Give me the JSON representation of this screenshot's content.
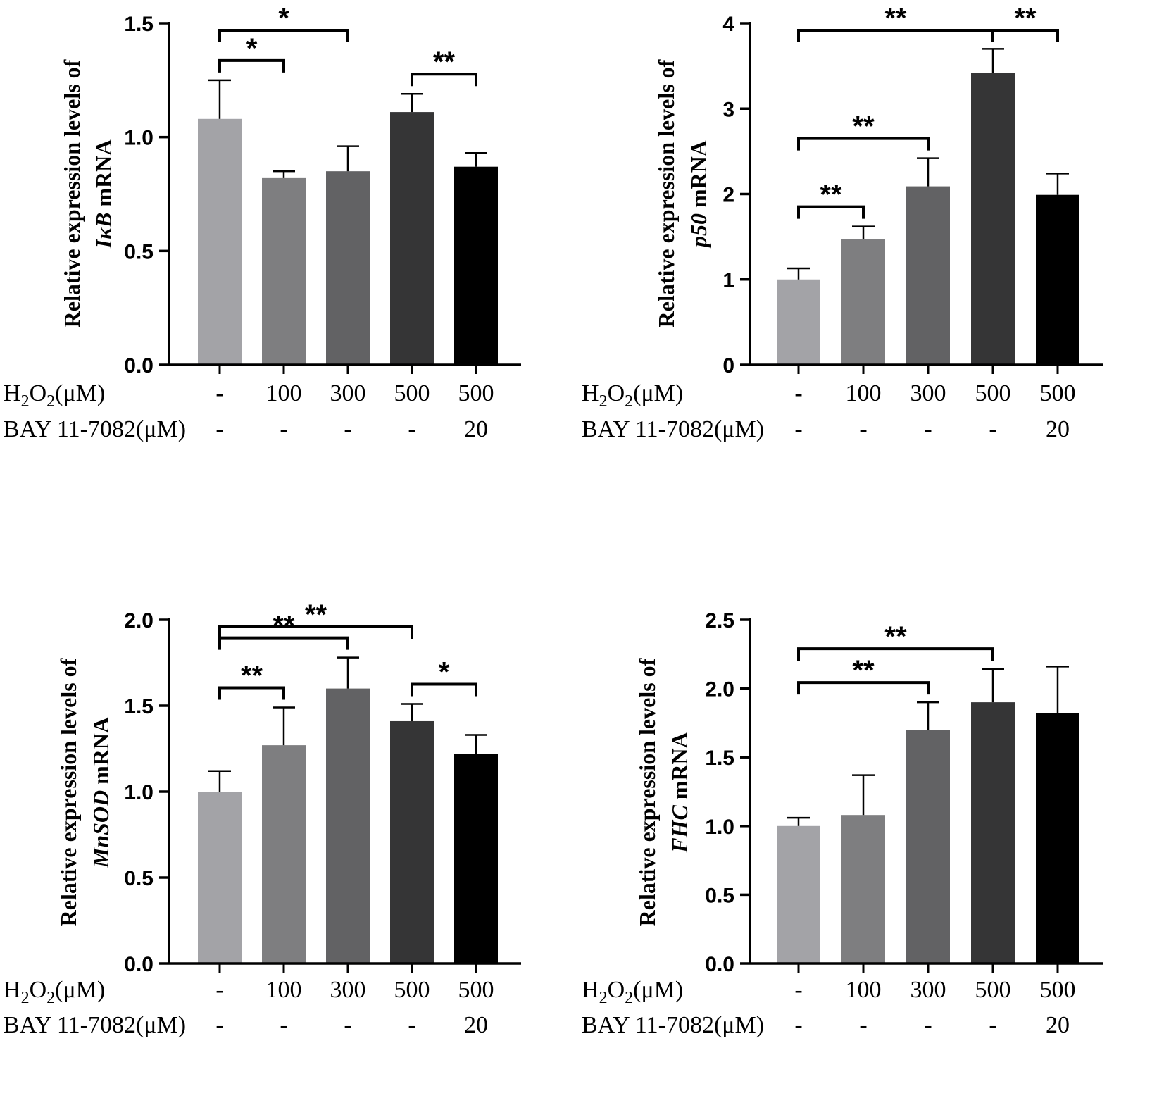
{
  "chart_data": [
    {
      "type": "bar",
      "panel": "top-left",
      "gene": "IκB",
      "ylabel_line1": "Relative expression levels of",
      "ylabel_unit": "mRNA",
      "categories": [
        "-",
        "100",
        "300",
        "500",
        "500"
      ],
      "values": [
        1.08,
        0.82,
        0.85,
        1.11,
        0.87
      ],
      "errors": [
        0.17,
        0.03,
        0.11,
        0.08,
        0.06
      ],
      "ylim": [
        0,
        1.5
      ],
      "yticks": [
        "0.0",
        "0.5",
        "1.0",
        "1.5"
      ],
      "ytick_values": [
        0,
        0.5,
        1.0,
        1.5
      ],
      "significance": [
        {
          "from": 0,
          "to": 1,
          "label": "*"
        },
        {
          "from": 0,
          "to": 2,
          "label": "*"
        },
        {
          "from": 3,
          "to": 4,
          "label": "**"
        }
      ]
    },
    {
      "type": "bar",
      "panel": "top-right",
      "gene": "p50",
      "ylabel_line1": "Relative expression levels of",
      "ylabel_unit": "mRNA",
      "categories": [
        "-",
        "100",
        "300",
        "500",
        "500"
      ],
      "values": [
        1.0,
        1.47,
        2.09,
        3.42,
        1.99
      ],
      "errors": [
        0.13,
        0.15,
        0.33,
        0.28,
        0.25
      ],
      "ylim": [
        0,
        4
      ],
      "yticks": [
        "0",
        "1",
        "2",
        "3",
        "4"
      ],
      "ytick_values": [
        0,
        1,
        2,
        3,
        4
      ],
      "significance": [
        {
          "from": 0,
          "to": 1,
          "label": "**"
        },
        {
          "from": 0,
          "to": 2,
          "label": "**"
        },
        {
          "from": 0,
          "to": 3,
          "label": "**"
        },
        {
          "from": 3,
          "to": 4,
          "label": "**"
        }
      ]
    },
    {
      "type": "bar",
      "panel": "bottom-left",
      "gene": "MnSOD",
      "ylabel_line1": "Relative expression levels of",
      "ylabel_unit": "mRNA",
      "categories": [
        "-",
        "100",
        "300",
        "500",
        "500"
      ],
      "values": [
        1.0,
        1.27,
        1.6,
        1.41,
        1.22
      ],
      "errors": [
        0.12,
        0.22,
        0.18,
        0.1,
        0.11
      ],
      "ylim": [
        0,
        2.0
      ],
      "yticks": [
        "0.0",
        "0.5",
        "1.0",
        "1.5",
        "2.0"
      ],
      "ytick_values": [
        0,
        0.5,
        1.0,
        1.5,
        2.0
      ],
      "significance": [
        {
          "from": 0,
          "to": 1,
          "label": "**"
        },
        {
          "from": 0,
          "to": 2,
          "label": "**"
        },
        {
          "from": 0,
          "to": 3,
          "label": "**"
        },
        {
          "from": 3,
          "to": 4,
          "label": "*"
        }
      ]
    },
    {
      "type": "bar",
      "panel": "bottom-right",
      "gene": "FHC",
      "ylabel_line1": "Relative expression levels of",
      "ylabel_unit": "mRNA",
      "categories": [
        "-",
        "100",
        "300",
        "500",
        "500"
      ],
      "values": [
        1.0,
        1.08,
        1.7,
        1.9,
        1.82
      ],
      "errors": [
        0.06,
        0.29,
        0.2,
        0.24,
        0.34
      ],
      "ylim": [
        0,
        2.5
      ],
      "yticks": [
        "0.0",
        "0.5",
        "1.0",
        "1.5",
        "2.0",
        "2.5"
      ],
      "ytick_values": [
        0,
        0.5,
        1.0,
        1.5,
        2.0,
        2.5
      ],
      "significance": [
        {
          "from": 0,
          "to": 2,
          "label": "**"
        },
        {
          "from": 0,
          "to": 3,
          "label": "**"
        }
      ]
    }
  ],
  "treatment_rows": {
    "h2o2": {
      "prefix": "H",
      "sub1": "2",
      "mid": "O",
      "sub2": "2",
      "unit": "(μM)",
      "values": [
        "-",
        "100",
        "300",
        "500",
        "500"
      ]
    },
    "bay": {
      "label": "BAY 11-7082(μM)",
      "values": [
        "-",
        "-",
        "-",
        "-",
        "20"
      ]
    }
  },
  "colors": {
    "bars": [
      "#a3a3a7",
      "#7e7e80",
      "#626264",
      "#353536",
      "#000000"
    ],
    "axis": "#000000",
    "background": "#ffffff"
  }
}
